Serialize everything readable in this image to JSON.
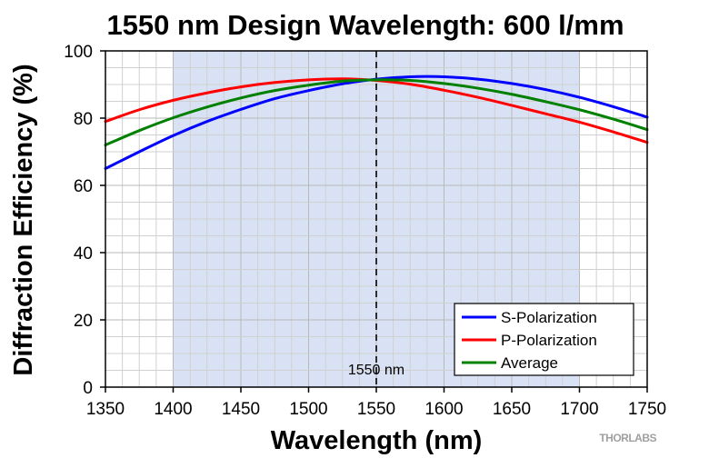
{
  "chart_data": {
    "type": "line",
    "title": "1550 nm Design Wavelength: 600 l/mm",
    "xlabel": "Wavelength (nm)",
    "ylabel": "Diffraction Efficiency (%)",
    "xlim": [
      1350,
      1750
    ],
    "ylim": [
      0,
      100
    ],
    "xticks": [
      1350,
      1400,
      1450,
      1500,
      1550,
      1600,
      1650,
      1700,
      1750
    ],
    "yticks": [
      0,
      20,
      40,
      60,
      80,
      100
    ],
    "grid": true,
    "highlight_band": {
      "x": [
        1400,
        1700
      ],
      "color": "#d9e2f5"
    },
    "vline": {
      "x": 1550,
      "style": "dashed",
      "label": "1550 nm"
    },
    "legend_position": "bottom-right",
    "x": [
      1350,
      1375,
      1400,
      1425,
      1450,
      1475,
      1500,
      1525,
      1550,
      1575,
      1600,
      1625,
      1650,
      1675,
      1700,
      1725,
      1750
    ],
    "series": [
      {
        "name": "S-Polarization",
        "color": "#0000ff",
        "values": [
          65,
          70,
          74.8,
          79,
          82.6,
          85.8,
          88.2,
          90.2,
          91.6,
          92.3,
          92.3,
          91.6,
          90.3,
          88.5,
          86.2,
          83.4,
          80.3
        ]
      },
      {
        "name": "P-Polarization",
        "color": "#ff0000",
        "values": [
          79,
          82.5,
          85.3,
          87.5,
          89.3,
          90.6,
          91.4,
          91.7,
          91.2,
          90.1,
          88.3,
          86.2,
          83.8,
          81.3,
          78.8,
          75.9,
          72.8
        ]
      },
      {
        "name": "Average",
        "color": "#008000",
        "values": [
          72,
          76.3,
          80.1,
          83.3,
          86,
          88.2,
          89.8,
          91,
          91.4,
          91.2,
          90.3,
          88.9,
          87.1,
          84.9,
          82.5,
          79.7,
          76.6
        ]
      }
    ]
  },
  "watermark": "THORLABS"
}
